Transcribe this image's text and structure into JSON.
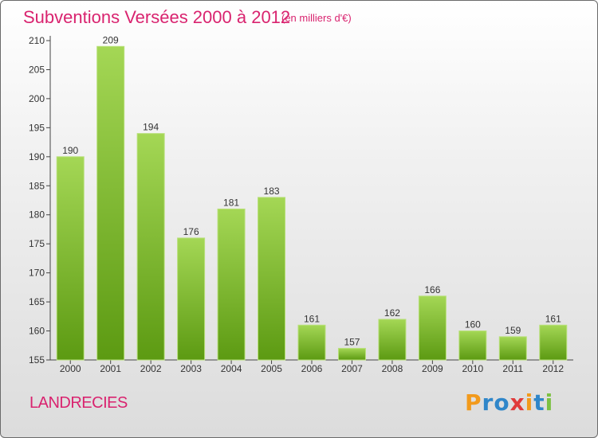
{
  "header": {
    "title": "Subventions Versées 2000 à 2012",
    "subtitle": "(en milliers d'€)"
  },
  "footer": {
    "commune": "LANDRECIES",
    "logo_text": "Proxiti"
  },
  "colors": {
    "accent": "#d9236f",
    "bar_light": "#9fd34e",
    "bar_dark": "#5c9a12",
    "logo_letters": [
      "#f29a1c",
      "#2f86c9",
      "#2f86c9",
      "#e03a3a",
      "#f29a1c",
      "#2f86c9",
      "#7cc142"
    ]
  },
  "chart_data": {
    "type": "bar",
    "title": "Subventions Versées 2000 à 2012",
    "subtitle": "(en milliers d'€)",
    "xlabel": "",
    "ylabel": "",
    "categories": [
      "2000",
      "2001",
      "2002",
      "2003",
      "2004",
      "2005",
      "2006",
      "2007",
      "2008",
      "2009",
      "2010",
      "2011",
      "2012"
    ],
    "values": [
      190,
      209,
      194,
      176,
      181,
      183,
      161,
      157,
      162,
      166,
      160,
      159,
      161
    ],
    "ylim": [
      155,
      210
    ],
    "yticks": [
      155,
      160,
      165,
      170,
      175,
      180,
      185,
      190,
      195,
      200,
      205,
      210
    ],
    "grid": false,
    "legend": "none",
    "data_labels": true
  }
}
